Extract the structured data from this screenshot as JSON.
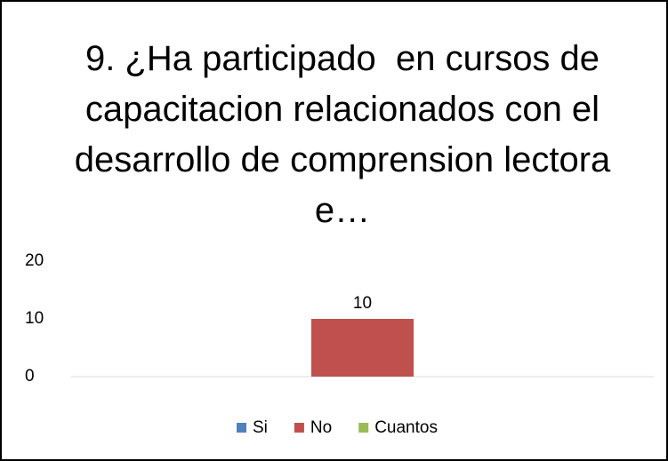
{
  "chart_data": {
    "type": "bar",
    "title": "9. ¿Ha participado  en cursos de capacitacion relacionados con el desarrollo de comprension lectora e…",
    "categories": [
      null
    ],
    "series": [
      {
        "name": "Si",
        "color": "#4f81bd",
        "values": [
          null
        ]
      },
      {
        "name": "No",
        "color": "#c0504d",
        "values": [
          10
        ]
      },
      {
        "name": "Cuantos",
        "color": "#9bbb59",
        "values": [
          null
        ]
      }
    ],
    "ylim": [
      0,
      20
    ],
    "yticks": [
      0,
      10,
      20
    ],
    "grid": false,
    "data_labels": true,
    "legend": "bottom"
  }
}
